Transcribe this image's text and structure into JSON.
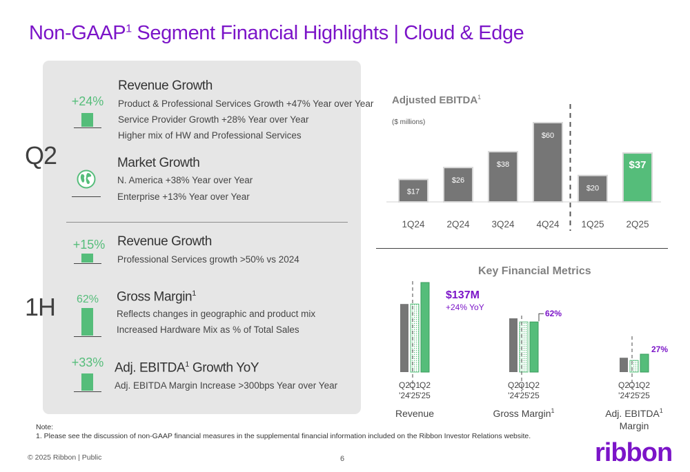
{
  "page": {
    "title_main": "Non-GAAP",
    "title_sup": "1",
    "title_rest": " Segment Financial Highlights | Cloud & Edge",
    "page_number": "6",
    "copyright": "© 2025 Ribbon | Public",
    "logo_text": "ribbon",
    "brand_color": "#7B14C8",
    "accent_green": "#55BD7A"
  },
  "left_panel": {
    "q2_label": "Q2",
    "h1_label": "1H",
    "q2": {
      "revenue": {
        "value": "+24%",
        "heading": "Revenue Growth",
        "lines": [
          "Product & Professional Services Growth +47% Year over Year",
          "Service Provider Growth +28% Year over Year",
          "Higher mix of HW and Professional Services"
        ]
      },
      "market": {
        "icon": "globe-icon",
        "heading": "Market Growth",
        "lines": [
          "N. America +38% Year over Year",
          "Enterprise +13% Year over Year"
        ]
      }
    },
    "h1": {
      "revenue": {
        "value": "+15%",
        "heading": "Revenue Growth",
        "lines": [
          "Professional Services growth >50% vs 2024"
        ]
      },
      "gross_margin": {
        "value": "62%",
        "heading": "Gross Margin",
        "heading_sup": "1",
        "lines": [
          "Reflects changes in geographic and product mix",
          "Increased Hardware Mix as % of Total Sales"
        ]
      },
      "ebitda": {
        "value": "+33%",
        "heading_pre": "Adj. EBITDA",
        "heading_sup": "1",
        "heading_post": " Growth YoY",
        "lines": [
          "Adj. EBITDA Margin Increase >300bps Year over Year"
        ]
      }
    }
  },
  "chart_data": [
    {
      "type": "bar",
      "title": "Adjusted EBITDA",
      "title_sup": "1",
      "units": "($ millions)",
      "categories": [
        "1Q24",
        "2Q24",
        "3Q24",
        "4Q24",
        "1Q25",
        "2Q25"
      ],
      "values": [
        17,
        26,
        38,
        60,
        20,
        37
      ],
      "labels": [
        "$17",
        "$26",
        "$38",
        "$60",
        "$20",
        "$37"
      ],
      "colors": [
        "#767676",
        "#767676",
        "#767676",
        "#767676",
        "#767676",
        "#55BD7A"
      ],
      "divider_after_index": 3
    },
    {
      "type": "bar",
      "title": "Key Financial Metrics",
      "groups": [
        {
          "name": "Revenue",
          "categories": [
            [
              "Q2",
              "'24"
            ],
            [
              "Q1",
              "'25"
            ],
            [
              "Q2",
              "'25"
            ]
          ],
          "values": [
            0.76,
            0.76,
            1.0
          ],
          "callout": "$137M",
          "callout_sub": "+24% YoY"
        },
        {
          "name": "Gross Margin",
          "name_sup": "1",
          "categories": [
            [
              "Q2",
              "'24"
            ],
            [
              "Q1",
              "'25"
            ],
            [
              "Q2",
              "'25"
            ]
          ],
          "values": [
            0.6,
            0.56,
            0.56
          ],
          "callout": "62%"
        },
        {
          "name": "Adj. EBITDA",
          "name_sup": "1",
          "name_line2": "Margin",
          "categories": [
            [
              "Q2",
              "'24"
            ],
            [
              "Q1",
              "'25"
            ],
            [
              "Q2",
              "'25"
            ]
          ],
          "values": [
            0.16,
            0.13,
            0.2
          ],
          "callout": "27%"
        }
      ]
    }
  ],
  "footnote": {
    "label": "Note:",
    "text": "1.  Please see the discussion of non-GAAP financial measures in the supplemental financial information included on the Ribbon Investor Relations website."
  }
}
